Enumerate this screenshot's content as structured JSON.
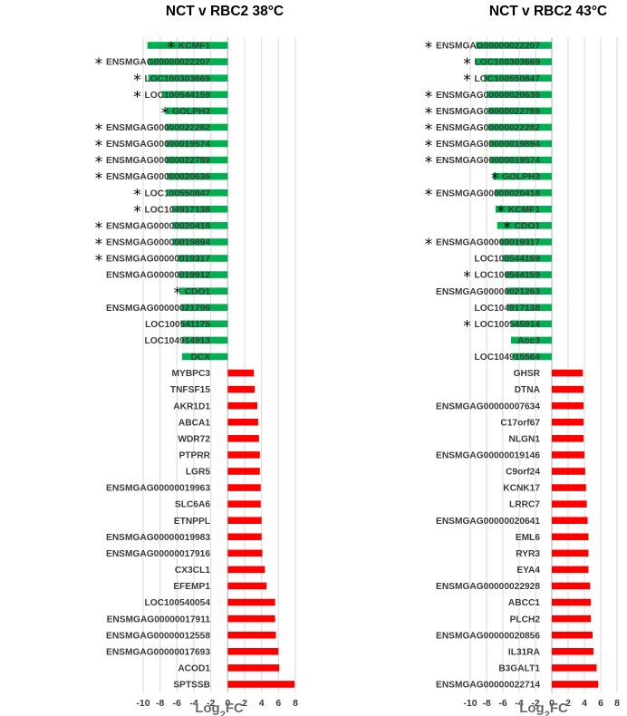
{
  "colors": {
    "down": "#00b050",
    "up": "#ff0000",
    "grid": "#d9d9d9",
    "axis": "#bfbfbf"
  },
  "marker_symbol": "*",
  "chart_data": [
    {
      "type": "bar",
      "orientation": "horizontal",
      "title": "NCT v RBC2 38°C",
      "xlabel": "Log2FC",
      "xlim": [
        -10,
        8
      ],
      "xticks": [
        -10,
        -8,
        -6,
        -4,
        -2,
        0,
        2,
        4,
        6,
        8
      ],
      "grid": true,
      "categories": [
        "KCMF1",
        "ENSMGAG00000022207",
        "LOC100303669",
        "LOC100544159",
        "GOLPH3",
        "ENSMGAG00000022282",
        "ENSMGAG00000019574",
        "ENSMGAG00000022789",
        "ENSMGAG00000020636",
        "LOC100550847",
        "LOC104917138",
        "ENSMGAG00000020418",
        "ENSMGAG00000019894",
        "ENSMGAG00000019317",
        "ENSMGAG00000019912",
        "CDO1",
        "ENSMGAG00000021796",
        "LOC100541175",
        "LOC104914913",
        "DCX",
        "MYBPC3",
        "TNFSF15",
        "AKR1D1",
        "ABCA1",
        "WDR72",
        "PTPRR",
        "LGR5",
        "ENSMGAG00000019963",
        "SLC6A6",
        "ETNPPL",
        "ENSMGAG00000019983",
        "ENSMGAG00000017916",
        "CX3CL1",
        "EFEMP1",
        "LOC100540054",
        "ENSMGAG00000017911",
        "ENSMGAG00000012558",
        "ENSMGAG00000017693",
        "ACOD1",
        "SPTSSB"
      ],
      "values": [
        -9.5,
        -9.4,
        -9.4,
        -7.8,
        -7.3,
        -7.3,
        -7.3,
        -7.3,
        -7.2,
        -7.2,
        -6.6,
        -6.5,
        -6.5,
        -5.9,
        -5.8,
        -5.7,
        -5.5,
        -5.5,
        -5.4,
        -5.4,
        3.1,
        3.2,
        3.5,
        3.6,
        3.7,
        3.8,
        3.8,
        3.9,
        3.9,
        4.0,
        4.0,
        4.1,
        4.4,
        4.6,
        5.6,
        5.6,
        5.7,
        6.0,
        6.1,
        7.9
      ],
      "starred": [
        true,
        true,
        true,
        true,
        true,
        true,
        true,
        true,
        true,
        true,
        true,
        true,
        true,
        true,
        false,
        true,
        false,
        false,
        false,
        false,
        false,
        false,
        false,
        false,
        false,
        false,
        false,
        false,
        false,
        false,
        false,
        false,
        false,
        false,
        false,
        false,
        false,
        false,
        false,
        false
      ]
    },
    {
      "type": "bar",
      "orientation": "horizontal",
      "title": "NCT v RBC2 43°C",
      "xlabel": "Log2FC",
      "xlim": [
        -10,
        8
      ],
      "xticks": [
        -10,
        -8,
        -6,
        -4,
        -2,
        0,
        2,
        4,
        6,
        8
      ],
      "grid": true,
      "categories": [
        "ENSMGAG00000022207",
        "LOC100303669",
        "LOC100550847",
        "ENSMGAG00000020636",
        "ENSMGAG00000022789",
        "ENSMGAG00000022282",
        "ENSMGAG00000019894",
        "ENSMGAG00000019574",
        "GOLPH3",
        "ENSMGAG00000020418",
        "KCMF1",
        "CDO1",
        "ENSMGAG00000019317",
        "LOC100544169",
        "LOC100544159",
        "ENSMGAG00000021263",
        "LOC104917138",
        "LOC100545914",
        "Aoc3",
        "LOC104915564",
        "GHSR",
        "DTNA",
        "ENSMGAG00000007634",
        "C17orf67",
        "NLGN1",
        "ENSMGAG00000019146",
        "C9orf24",
        "KCNK17",
        "LRRC7",
        "ENSMGAG00000020641",
        "EML6",
        "RYR3",
        "EYA4",
        "ENSMGAG00000022928",
        "ABCC1",
        "PLCH2",
        "ENSMGAG00000020856",
        "IL31RA",
        "B3GALT1",
        "ENSMGAG00000022714"
      ],
      "values": [
        -9.3,
        -9.3,
        -8.3,
        -8.0,
        -7.8,
        -7.8,
        -7.7,
        -7.6,
        -7.2,
        -7.0,
        -6.9,
        -6.7,
        -6.3,
        -6.0,
        -5.7,
        -5.6,
        -5.5,
        -5.0,
        -5.0,
        -4.8,
        3.8,
        3.9,
        3.9,
        3.9,
        3.9,
        4.0,
        4.1,
        4.2,
        4.3,
        4.4,
        4.5,
        4.5,
        4.5,
        4.7,
        4.8,
        4.8,
        5.0,
        5.1,
        5.5,
        5.7
      ],
      "starred": [
        true,
        true,
        true,
        true,
        true,
        true,
        true,
        true,
        true,
        true,
        true,
        true,
        true,
        false,
        true,
        false,
        false,
        true,
        false,
        false,
        false,
        false,
        false,
        false,
        false,
        false,
        false,
        false,
        false,
        false,
        false,
        false,
        false,
        false,
        false,
        false,
        false,
        false,
        false,
        false
      ]
    }
  ]
}
